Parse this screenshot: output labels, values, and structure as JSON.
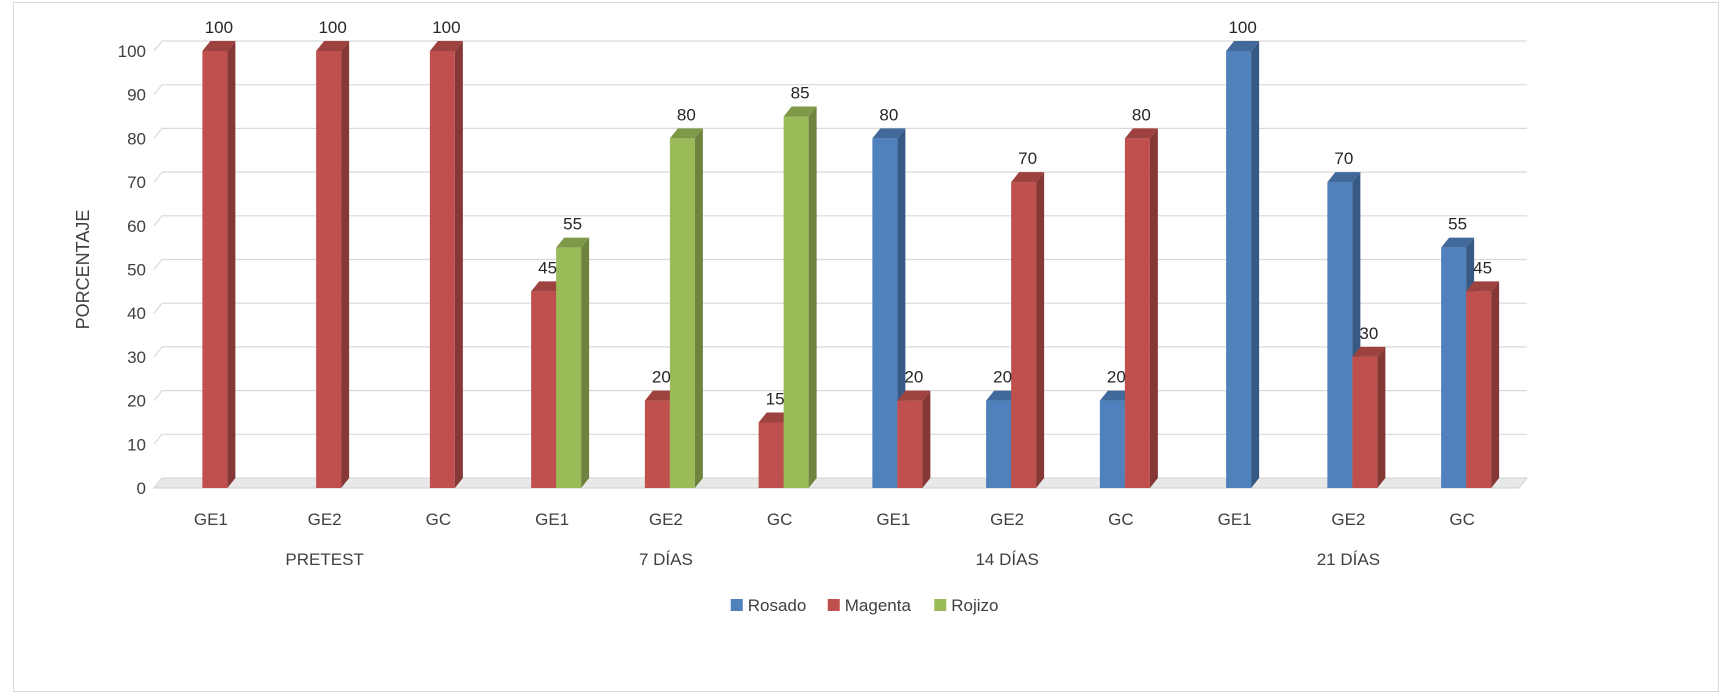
{
  "chart_data": {
    "type": "bar",
    "title": "",
    "xlabel": "",
    "ylabel": "PORCENTAJE",
    "ylim": [
      0,
      100
    ],
    "yticks": [
      "0",
      "10",
      "20",
      "30",
      "40",
      "50",
      "60",
      "70",
      "80",
      "90",
      "100"
    ],
    "grid": true,
    "legend_position": "bottom",
    "groups": [
      {
        "label": "PRETEST",
        "categories": [
          "GE1",
          "GE2",
          "GC"
        ]
      },
      {
        "label": "7 DÍAS",
        "categories": [
          "GE1",
          "GE2",
          "GC"
        ]
      },
      {
        "label": "14 DÍAS",
        "categories": [
          "GE1",
          "GE2",
          "GC"
        ]
      },
      {
        "label": "21 DÍAS",
        "categories": [
          "GE1",
          "GE2",
          "GC"
        ]
      }
    ],
    "series": [
      {
        "name": "Rosado",
        "color": "#4f81bd",
        "values": [
          0,
          0,
          0,
          0,
          0,
          0,
          80,
          20,
          20,
          100,
          70,
          55
        ]
      },
      {
        "name": "Magenta",
        "color": "#c0504d",
        "values": [
          100,
          100,
          100,
          45,
          20,
          15,
          20,
          70,
          80,
          0,
          30,
          45
        ]
      },
      {
        "name": "Rojizo",
        "color": "#9bbb59",
        "values": [
          0,
          0,
          0,
          55,
          80,
          85,
          0,
          0,
          0,
          0,
          0,
          0
        ]
      }
    ],
    "data_labels": [
      {
        "series": 1,
        "index": 0,
        "text": "100"
      },
      {
        "series": 1,
        "index": 1,
        "text": "100"
      },
      {
        "series": 1,
        "index": 2,
        "text": "100"
      },
      {
        "series": 1,
        "index": 3,
        "text": "45"
      },
      {
        "series": 2,
        "index": 3,
        "text": "55"
      },
      {
        "series": 1,
        "index": 4,
        "text": "20"
      },
      {
        "series": 2,
        "index": 4,
        "text": "80"
      },
      {
        "series": 1,
        "index": 5,
        "text": "15"
      },
      {
        "series": 2,
        "index": 5,
        "text": "85"
      },
      {
        "series": 0,
        "index": 6,
        "text": "80"
      },
      {
        "series": 1,
        "index": 6,
        "text": "20"
      },
      {
        "series": 0,
        "index": 7,
        "text": "20"
      },
      {
        "series": 1,
        "index": 7,
        "text": "70"
      },
      {
        "series": 0,
        "index": 8,
        "text": "20"
      },
      {
        "series": 1,
        "index": 8,
        "text": "80"
      },
      {
        "series": 0,
        "index": 9,
        "text": "100"
      },
      {
        "series": 0,
        "index": 10,
        "text": "70"
      },
      {
        "series": 1,
        "index": 10,
        "text": "30"
      },
      {
        "series": 0,
        "index": 11,
        "text": "55"
      },
      {
        "series": 1,
        "index": 11,
        "text": "45"
      }
    ]
  }
}
